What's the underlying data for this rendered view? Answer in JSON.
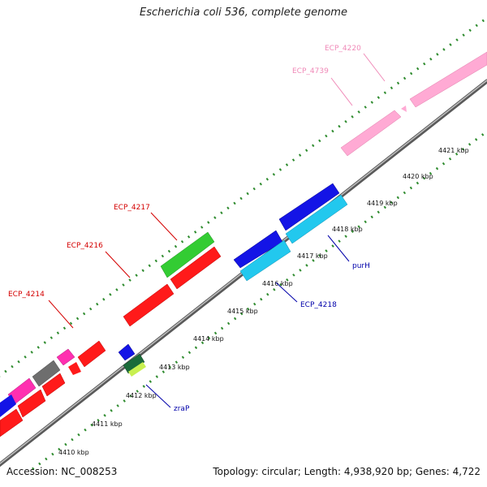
{
  "title": "Escherichia coli 536, complete genome",
  "accession": "Accession: NC_008253",
  "summary": "Topology: circular; Length: 4,938,920 bp; Genes: 4,722",
  "colors": {
    "backbone": "#8a8a8a",
    "tick_green": "#2e8b2e",
    "red_gene": "#ff1a1a",
    "green_gene": "#33cc33",
    "pink_gene": "#ffaad4",
    "magenta_gene": "#ff2fb0",
    "gray_gene": "#6e6e6e",
    "blue_gene": "#1414e6",
    "cyan_gene": "#22c8ee",
    "label_red": "#d40000",
    "label_pink": "#f08ab8",
    "label_blue": "#0000aa"
  },
  "kbp_labels": [
    "4410 kbp",
    "4411 kbp",
    "4412 kbp",
    "4413 kbp",
    "4414 kbp",
    "4415 kbp",
    "4416 kbp",
    "4417 kbp",
    "4418 kbp",
    "4419 kbp",
    "4420 kbp",
    "4421 kbp"
  ],
  "gene_labels": {
    "ecp_4220": "ECP_4220",
    "ecp_4739": "ECP_4739",
    "ecp_4217": "ECP_4217",
    "ecp_4216": "ECP_4216",
    "ecp_4214": "ECP_4214",
    "purH": "purH",
    "ecp_4218": "ECP_4218",
    "zraP": "zraP"
  }
}
